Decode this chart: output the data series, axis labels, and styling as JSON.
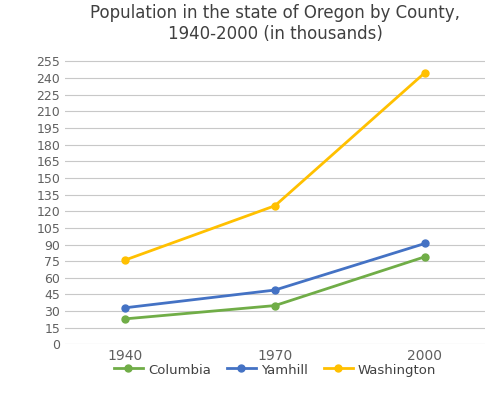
{
  "title": "Population in the state of Oregon by County,\n1940-2000 (in thousands)",
  "x_values": [
    1940,
    1970,
    2000
  ],
  "x_labels": [
    "1940",
    "1970",
    "2000"
  ],
  "series": [
    {
      "name": "Columbia",
      "values": [
        23,
        35,
        79
      ],
      "color": "#70ad47",
      "marker": "o",
      "markersize": 5
    },
    {
      "name": "Yamhill",
      "values": [
        33,
        49,
        91
      ],
      "color": "#4472c4",
      "marker": "o",
      "markersize": 5
    },
    {
      "name": "Washington",
      "values": [
        76,
        125,
        245
      ],
      "color": "#ffc000",
      "marker": "o",
      "markersize": 5
    }
  ],
  "ylim": [
    0,
    265
  ],
  "yticks": [
    0,
    15,
    30,
    45,
    60,
    75,
    90,
    105,
    120,
    135,
    150,
    165,
    180,
    195,
    210,
    225,
    240,
    255
  ],
  "title_fontsize": 12,
  "tick_fontsize": 10,
  "legend_fontsize": 9.5,
  "background_color": "#ffffff",
  "grid_color": "#c8c8c8"
}
